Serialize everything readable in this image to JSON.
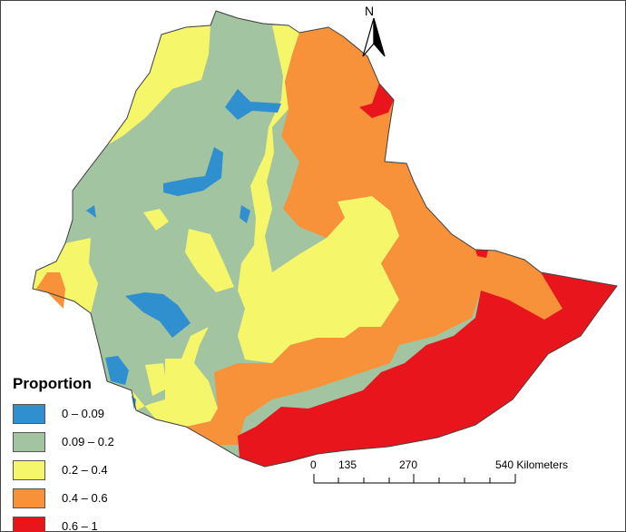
{
  "legend": {
    "title": "Proportion",
    "classes": [
      {
        "label": "0 – 0.09",
        "color": "#2f8fcf"
      },
      {
        "label": "0.09 – 0.2",
        "color": "#a3c4a0"
      },
      {
        "label": "0.2 – 0.4",
        "color": "#f6f66a"
      },
      {
        "label": "0.4 – 0.6",
        "color": "#f7923a"
      },
      {
        "label": "0.6 – 1",
        "color": "#e8161c"
      }
    ]
  },
  "north_arrow": {
    "label": "N",
    "icon": "north-arrow-icon"
  },
  "scale_bar": {
    "ticks": [
      "0",
      "135",
      "270",
      "540"
    ],
    "unit": "Kilometers"
  }
}
